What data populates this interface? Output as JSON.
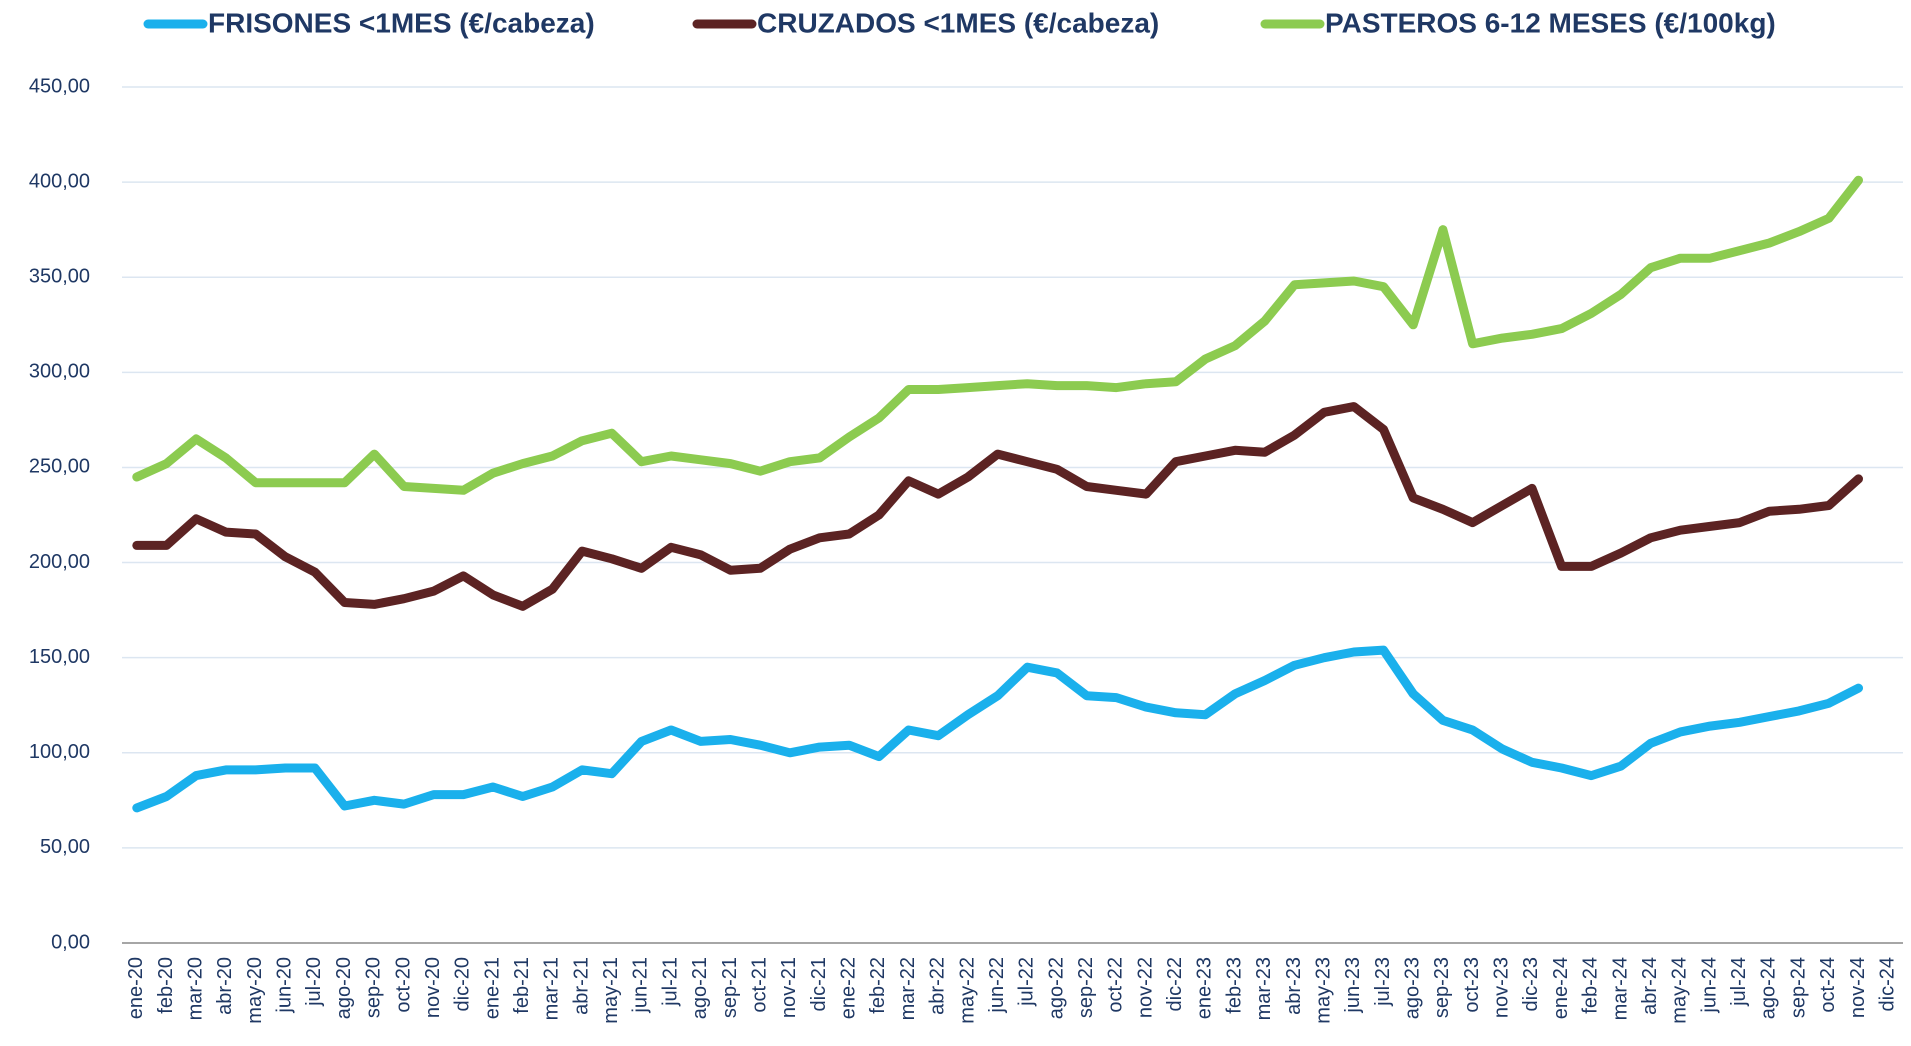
{
  "chart_data": {
    "type": "line",
    "categories": [
      "ene-20",
      "feb-20",
      "mar-20",
      "abr-20",
      "may-20",
      "jun-20",
      "jul-20",
      "ago-20",
      "sep-20",
      "oct-20",
      "nov-20",
      "dic-20",
      "ene-21",
      "feb-21",
      "mar-21",
      "abr-21",
      "may-21",
      "jun-21",
      "jul-21",
      "ago-21",
      "sep-21",
      "oct-21",
      "nov-21",
      "dic-21",
      "ene-22",
      "feb-22",
      "mar-22",
      "abr-22",
      "may-22",
      "jun-22",
      "jul-22",
      "ago-22",
      "sep-22",
      "oct-22",
      "nov-22",
      "dic-22",
      "ene-23",
      "feb-23",
      "mar-23",
      "abr-23",
      "may-23",
      "jun-23",
      "jul-23",
      "ago-23",
      "sep-23",
      "oct-23",
      "nov-23",
      "dic-23",
      "ene-24",
      "feb-24",
      "mar-24",
      "abr-24",
      "may-24",
      "jun-24",
      "jul-24",
      "ago-24",
      "sep-24",
      "oct-24",
      "nov-24",
      "dic-24"
    ],
    "series": [
      {
        "name": "FRISONES <1MES (€/cabeza)",
        "color": "#1ab0ec",
        "values": [
          71,
          77,
          88,
          91,
          91,
          92,
          92,
          72,
          75,
          73,
          78,
          78,
          82,
          77,
          82,
          91,
          89,
          106,
          112,
          106,
          107,
          104,
          100,
          103,
          104,
          98,
          112,
          109,
          120,
          130,
          145,
          142,
          130,
          129,
          124,
          121,
          120,
          131,
          138,
          146,
          150,
          153,
          154,
          131,
          117,
          112,
          102,
          95,
          92,
          88,
          93,
          105,
          111,
          114,
          116,
          119,
          122,
          126,
          134,
          null
        ]
      },
      {
        "name": "CRUZADOS <1MES (€/cabeza)",
        "color": "#5c2323",
        "values": [
          209,
          209,
          223,
          216,
          215,
          203,
          195,
          179,
          178,
          181,
          185,
          193,
          183,
          177,
          186,
          206,
          202,
          197,
          208,
          204,
          196,
          197,
          207,
          213,
          215,
          225,
          243,
          236,
          245,
          257,
          253,
          249,
          240,
          238,
          236,
          253,
          256,
          259,
          258,
          267,
          279,
          282,
          270,
          234,
          228,
          221,
          230,
          239,
          198,
          198,
          205,
          213,
          217,
          219,
          221,
          227,
          228,
          230,
          244,
          null
        ]
      },
      {
        "name": "PASTEROS 6-12 MESES (€/100kg)",
        "color": "#8ccb50",
        "values": [
          245,
          252,
          265,
          255,
          242,
          242,
          242,
          242,
          257,
          240,
          239,
          238,
          247,
          252,
          256,
          264,
          268,
          253,
          256,
          254,
          252,
          248,
          253,
          255,
          266,
          276,
          291,
          291,
          292,
          293,
          294,
          293,
          293,
          292,
          294,
          295,
          307,
          314,
          327,
          346,
          347,
          348,
          345,
          325,
          375,
          315,
          318,
          320,
          323,
          331,
          341,
          355,
          360,
          360,
          364,
          368,
          374,
          381,
          401,
          null
        ]
      }
    ],
    "ylim": [
      0,
      450
    ],
    "yticks": [
      {
        "value": 0,
        "label": "0,00"
      },
      {
        "value": 50,
        "label": "50,00"
      },
      {
        "value": 100,
        "label": "100,00"
      },
      {
        "value": 150,
        "label": "150,00"
      },
      {
        "value": 200,
        "label": "200,00"
      },
      {
        "value": 250,
        "label": "250,00"
      },
      {
        "value": 300,
        "label": "300,00"
      },
      {
        "value": 350,
        "label": "350,00"
      },
      {
        "value": 400,
        "label": "400,00"
      },
      {
        "value": 450,
        "label": "450,00"
      }
    ],
    "grid": true,
    "legend": "top"
  }
}
